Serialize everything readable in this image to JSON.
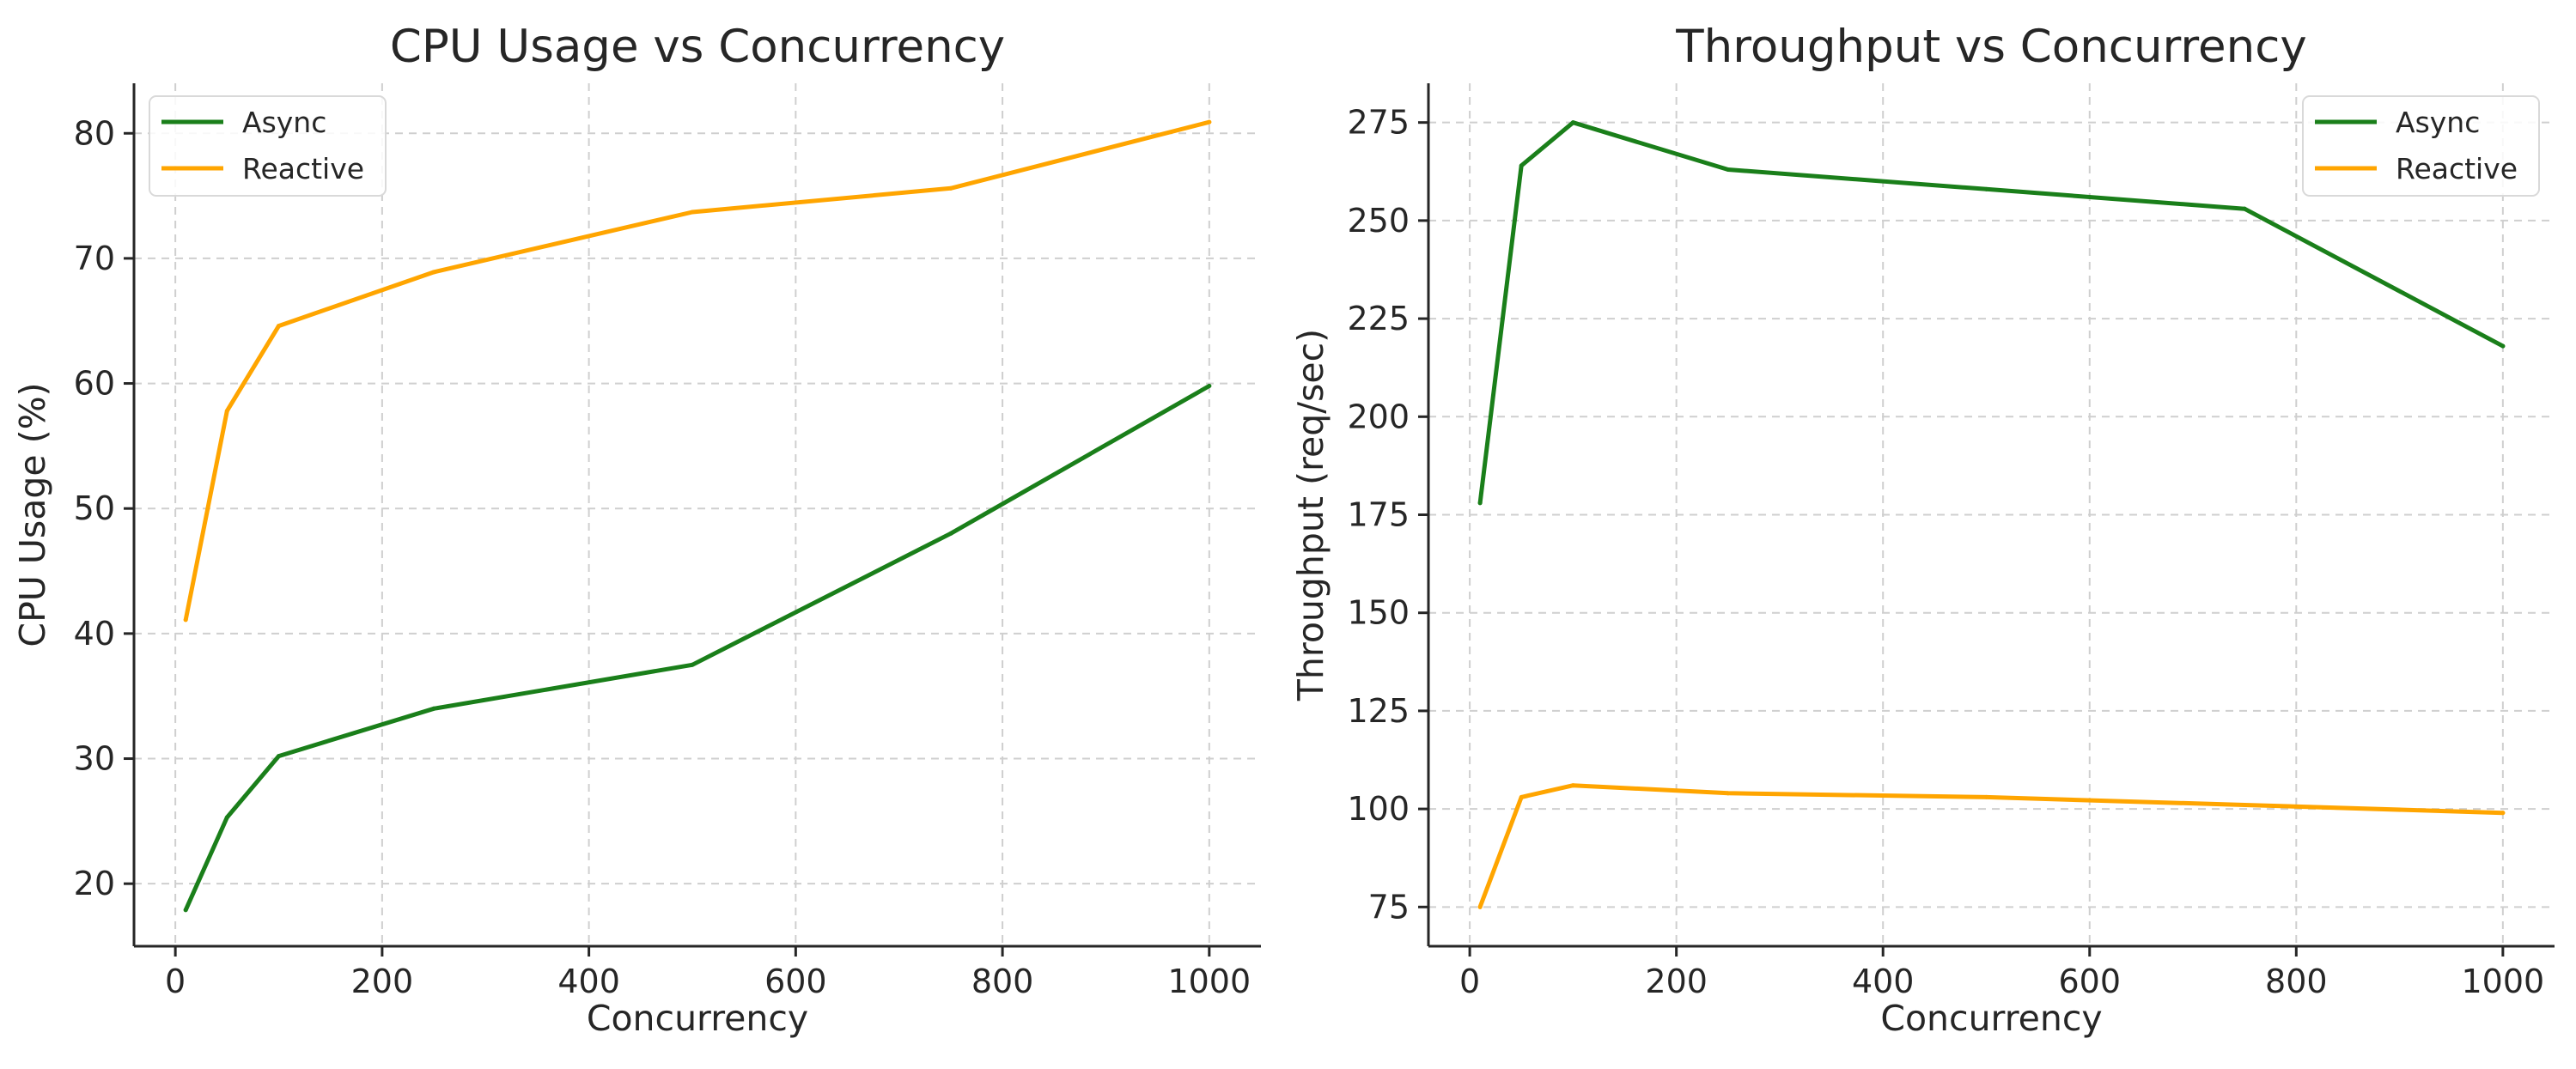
{
  "chart_data": [
    {
      "type": "line",
      "title": "CPU Usage vs Concurrency",
      "xlabel": "Concurrency",
      "ylabel": "CPU Usage (%)",
      "xlim": [
        -40,
        1050
      ],
      "ylim": [
        15,
        84
      ],
      "xticks": [
        0,
        200,
        400,
        600,
        800,
        1000
      ],
      "yticks": [
        20,
        30,
        40,
        50,
        60,
        70,
        80
      ],
      "grid": true,
      "legend_position": "top-left",
      "x": [
        10,
        50,
        100,
        250,
        500,
        750,
        1000
      ],
      "series": [
        {
          "name": "Async",
          "color": "#1a7f1a",
          "values": [
            17.9,
            25.3,
            30.2,
            34.0,
            37.5,
            48.0,
            59.8
          ]
        },
        {
          "name": "Reactive",
          "color": "#ffa500",
          "values": [
            41.1,
            57.8,
            64.6,
            68.9,
            73.7,
            75.6,
            80.9
          ]
        }
      ]
    },
    {
      "type": "line",
      "title": "Throughput vs Concurrency",
      "xlabel": "Concurrency",
      "ylabel": "Throughput (req/sec)",
      "xlim": [
        -40,
        1050
      ],
      "ylim": [
        65,
        285
      ],
      "xticks": [
        0,
        200,
        400,
        600,
        800,
        1000
      ],
      "yticks": [
        75,
        100,
        125,
        150,
        175,
        200,
        225,
        250,
        275
      ],
      "grid": true,
      "legend_position": "top-right",
      "x": [
        10,
        50,
        100,
        250,
        500,
        750,
        1000
      ],
      "series": [
        {
          "name": "Async",
          "color": "#1a7f1a",
          "values": [
            178,
            264,
            275,
            263,
            258,
            253,
            218
          ]
        },
        {
          "name": "Reactive",
          "color": "#ffa500",
          "values": [
            75,
            103,
            106,
            104,
            103,
            101,
            99
          ]
        }
      ]
    }
  ]
}
